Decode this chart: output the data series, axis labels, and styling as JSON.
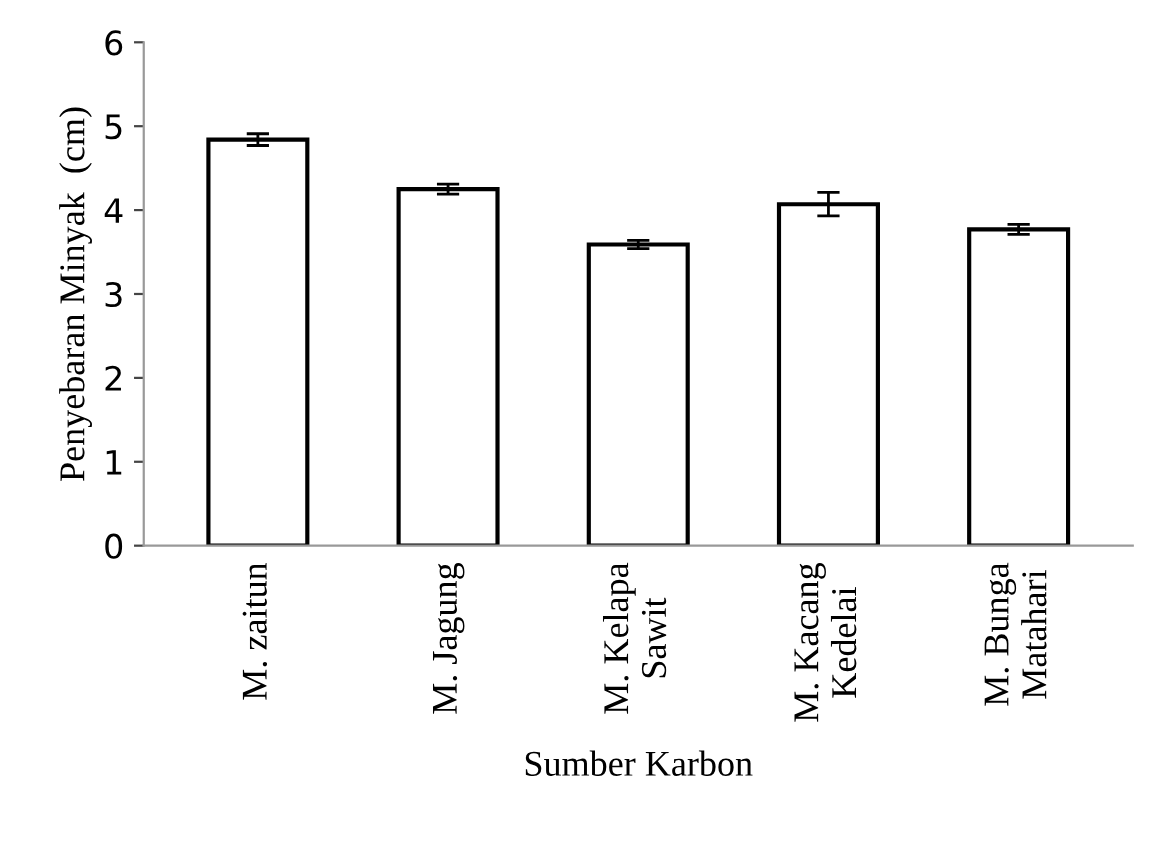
{
  "chart_data": {
    "type": "bar",
    "xlabel": "Sumber Karbon",
    "ylabel": "Penyebaran Minyak  (cm)",
    "categories": [
      "M. zaitun",
      "M. Jagung",
      "M. Kelapa\nSawit",
      "M. Kacang\nKedelai",
      "M. Bunga\nMatahari"
    ],
    "values": [
      4.84,
      4.25,
      3.59,
      4.07,
      3.77
    ],
    "errors": [
      0.07,
      0.06,
      0.05,
      0.14,
      0.06
    ],
    "color": "#ffffff",
    "ylim": [
      0,
      6
    ],
    "yticks": [
      0,
      1,
      2,
      3,
      4,
      5,
      6
    ],
    "grid": false,
    "legend": false
  }
}
